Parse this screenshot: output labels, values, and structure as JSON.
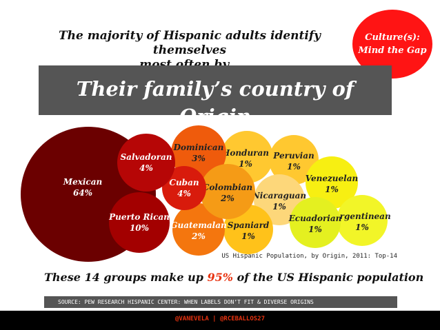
{
  "headline": {
    "line1": "The majority of Hispanic adults identify themselves",
    "line2": "most often by..."
  },
  "tag": {
    "line1": "Culture(s):",
    "line2": "Mind the Gap",
    "color": "#ff1414"
  },
  "banner": {
    "title": "Their family’s country of Origin"
  },
  "chart_data": {
    "type": "bubble",
    "title": "",
    "source": "US Hispanic Population, by Origin, 2011: Top-14",
    "series": [
      {
        "label": "Mexican",
        "value_label": "64%",
        "value": 64,
        "color": "#6b0000"
      },
      {
        "label": "Puerto Rican",
        "value_label": "10%",
        "value": 10,
        "color": "#a30000"
      },
      {
        "label": "Salvadoran",
        "value_label": "4%",
        "value": 4,
        "color": "#b60606"
      },
      {
        "label": "Cuban",
        "value_label": "4%",
        "value": 4,
        "color": "#d81b0c"
      },
      {
        "label": "Dominican",
        "value_label": "3%",
        "value": 3,
        "color": "#ef5b0c"
      },
      {
        "label": "Guatemalan",
        "value_label": "2%",
        "value": 2,
        "color": "#f4760e"
      },
      {
        "label": "Colombian",
        "value_label": "2%",
        "value": 2,
        "color": "#f59b16"
      },
      {
        "label": "Honduran",
        "value_label": "1%",
        "value": 1,
        "color": "#ffc830"
      },
      {
        "label": "Peruvian",
        "value_label": "1%",
        "value": 1,
        "color": "#ffc830"
      },
      {
        "label": "Nicaraguan",
        "value_label": "1%",
        "value": 1,
        "color": "#fdd77a"
      },
      {
        "label": "Spaniard",
        "value_label": "1%",
        "value": 1,
        "color": "#ffc21a"
      },
      {
        "label": "Venezuelan",
        "value_label": "1%",
        "value": 1,
        "color": "#f7ef12"
      },
      {
        "label": "Ecuadorian",
        "value_label": "1%",
        "value": 1,
        "color": "#e4f020"
      },
      {
        "label": "Argentinean",
        "value_label": "1%",
        "value": 1,
        "color": "#f2f528"
      }
    ]
  },
  "summary": {
    "prefix": "These 14 groups make up ",
    "percent": "95%",
    "suffix": " of the US Hispanic population",
    "percent_color": "#e8320f"
  },
  "source_bar": {
    "text": "SOURCE: PEW RESEARCH HISPANIC CENTER: WHEN LABELS DON’T FIT & DIVERSE ORIGINS"
  },
  "footer": {
    "text": "@VANEVELA | @RCEBALLOS27"
  }
}
